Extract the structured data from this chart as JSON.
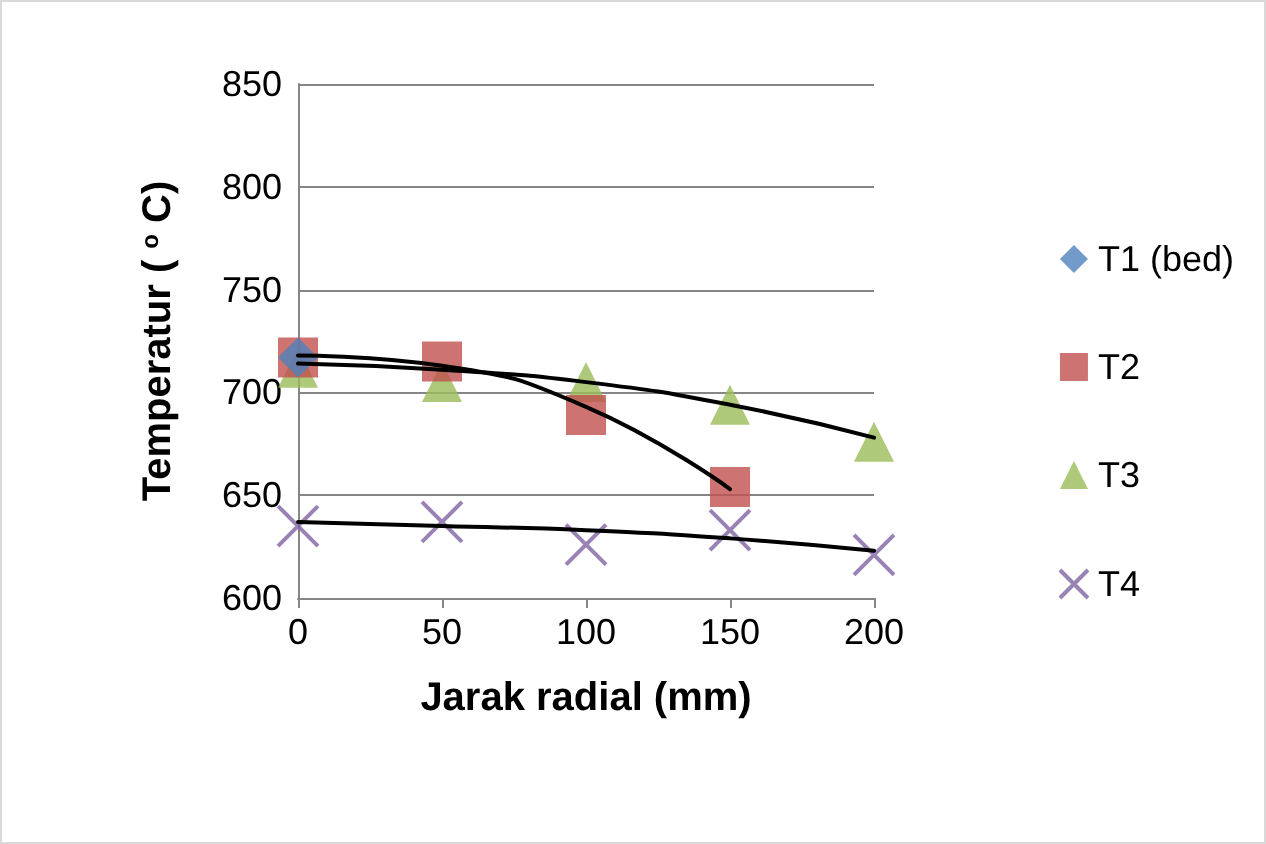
{
  "chart_data": {
    "type": "scatter",
    "xlabel": "Jarak radial (mm)",
    "ylabel": "Temperatur ( $^{o}$ C)",
    "xlim": [
      0,
      200
    ],
    "xticks": [
      0,
      50,
      100,
      150,
      200
    ],
    "ylim": [
      600,
      850
    ],
    "yticks": [
      600,
      650,
      700,
      750,
      800,
      850
    ],
    "grid": "y",
    "legend": "right",
    "series": [
      {
        "name": "T4",
        "color": "#8064a2",
        "marker": "cross",
        "x": [
          0,
          50,
          100,
          150,
          200
        ],
        "values": [
          635,
          637,
          626,
          633,
          621
        ]
      },
      {
        "name": "T3",
        "color": "#9bbb59",
        "marker": "triangle",
        "x": [
          0,
          50,
          100,
          150,
          200
        ],
        "values": [
          712,
          705,
          705,
          694,
          676
        ]
      },
      {
        "name": "T2",
        "color": "#c0504d",
        "marker": "square",
        "x": [
          0,
          50,
          100,
          150
        ],
        "values": [
          717,
          715,
          689,
          654
        ]
      },
      {
        "name": "T1 (bed)",
        "color": "#4f81bd",
        "marker": "diamond",
        "x": [
          0
        ],
        "values": [
          717
        ]
      },
      {
        "type": "line",
        "color": "#000000",
        "marker": "none",
        "x": [
          0,
          50,
          100,
          150,
          200
        ],
        "values": [
          637,
          635,
          633,
          629,
          623
        ]
      },
      {
        "type": "line",
        "color": "#000000",
        "marker": "none",
        "x": [
          0,
          50,
          100,
          150,
          200
        ],
        "values": [
          714,
          711,
          705,
          694,
          678
        ]
      },
      {
        "type": "line",
        "color": "#000000",
        "marker": "none",
        "x": [
          0,
          50,
          100,
          150
        ],
        "values": [
          718,
          713,
          693,
          653
        ]
      }
    ]
  }
}
